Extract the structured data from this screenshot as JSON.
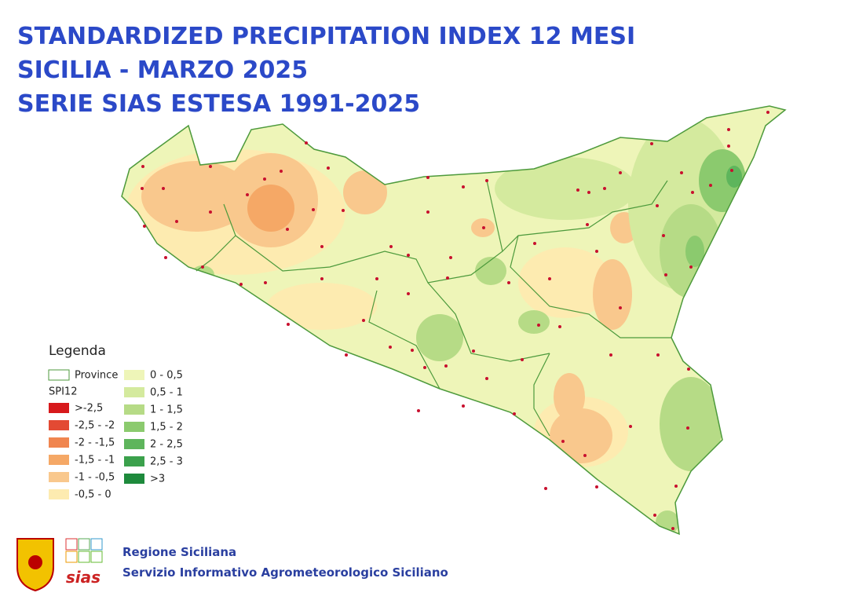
{
  "header": {
    "title_lines": [
      "STANDARDIZED PRECIPITATION INDEX 12 MESI",
      "SICILIA - MARZO 2025",
      "SERIE SIAS ESTESA 1991-2025"
    ]
  },
  "legend": {
    "title": "Legenda",
    "province": "Province",
    "spi_title": "SPI12",
    "classes": [
      {
        "label": ">-2,5",
        "color": "#d7191c"
      },
      {
        "label": "-2,5 - -2",
        "color": "#e34a33"
      },
      {
        "label": "-2 - -1,5",
        "color": "#f0854f"
      },
      {
        "label": "-1,5 - -1",
        "color": "#f5a866"
      },
      {
        "label": "-1 - -0,5",
        "color": "#f9c88d"
      },
      {
        "label": "-0,5 - 0",
        "color": "#fdebb0"
      },
      {
        "label": "0 - 0,5",
        "color": "#eef5b8"
      },
      {
        "label": "0,5 - 1",
        "color": "#d4ea9e"
      },
      {
        "label": "1 - 1,5",
        "color": "#b6db86"
      },
      {
        "label": "1,5 - 2",
        "color": "#8bca6e"
      },
      {
        "label": "2 - 2,5",
        "color": "#5eb55c"
      },
      {
        "label": "2,5 - 3",
        "color": "#3ba14c"
      },
      {
        "label": ">3",
        "color": "#1e8a3c"
      }
    ]
  },
  "footer": {
    "logo_text": "sias",
    "lines": [
      "Regione Siciliana",
      "Servizio Informativo Agrometeorologico Siciliano"
    ]
  }
}
